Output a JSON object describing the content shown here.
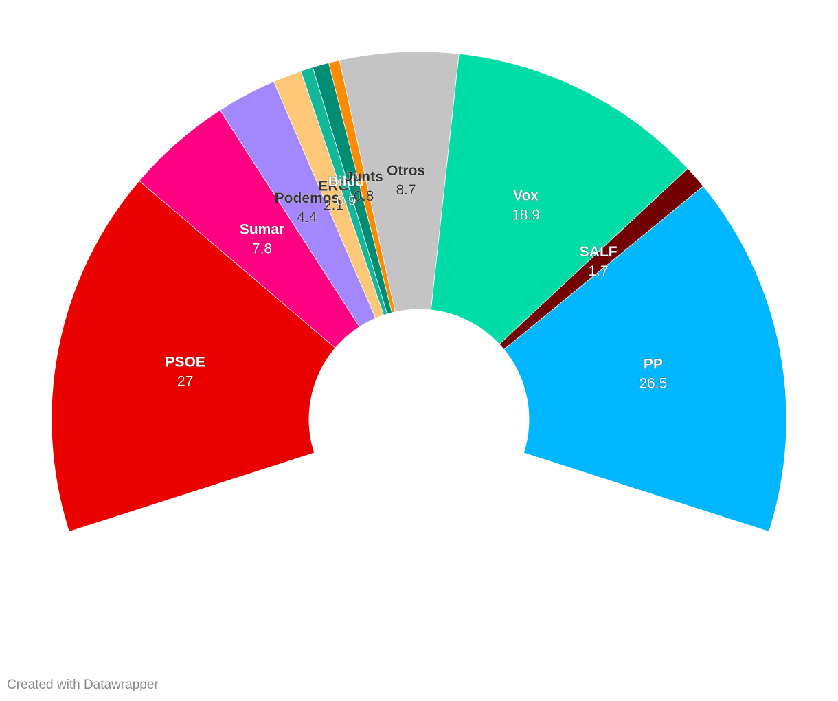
{
  "chart_data": {
    "type": "semi-donut",
    "categories": [
      "PSOE",
      "Sumar",
      "Podemos",
      "ERC",
      "Bildu",
      null,
      "Junts",
      "Otros",
      "Vox",
      "SALF",
      "PP"
    ],
    "values": [
      27,
      7.8,
      4.4,
      2.1,
      0.9,
      1.2,
      0.8,
      8.7,
      18.9,
      1.7,
      26.5
    ],
    "colors": [
      "#eb0000",
      "#ff0083",
      "#a287ff",
      "#ffc878",
      "#13b89a",
      "#008d74",
      "#ff8c00",
      "#c4c4c4",
      "#00dca8",
      "#720000",
      "#00b7ff"
    ],
    "footer": "Created with Datawrapper"
  }
}
